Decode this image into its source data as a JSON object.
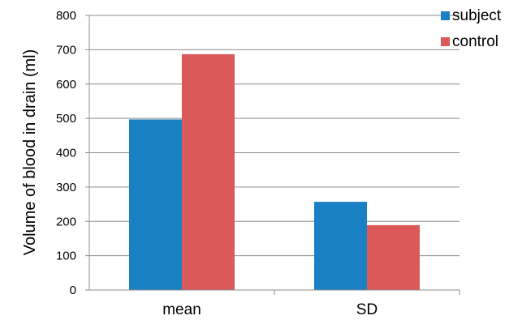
{
  "chart_data": {
    "type": "bar",
    "categories": [
      "mean",
      "SD"
    ],
    "series": [
      {
        "name": "subject",
        "color": "#1a80c4",
        "values": [
          497,
          257
        ]
      },
      {
        "name": "control",
        "color": "#dc5959",
        "values": [
          687,
          189
        ]
      }
    ],
    "title": "",
    "xlabel": "",
    "ylabel": "Volume of blood in drain (ml)",
    "ylim": [
      0,
      800
    ],
    "yticks": [
      "0",
      "100",
      "200",
      "300",
      "400",
      "500",
      "600",
      "700",
      "800"
    ],
    "grid": true,
    "legend_position": "top-right"
  }
}
